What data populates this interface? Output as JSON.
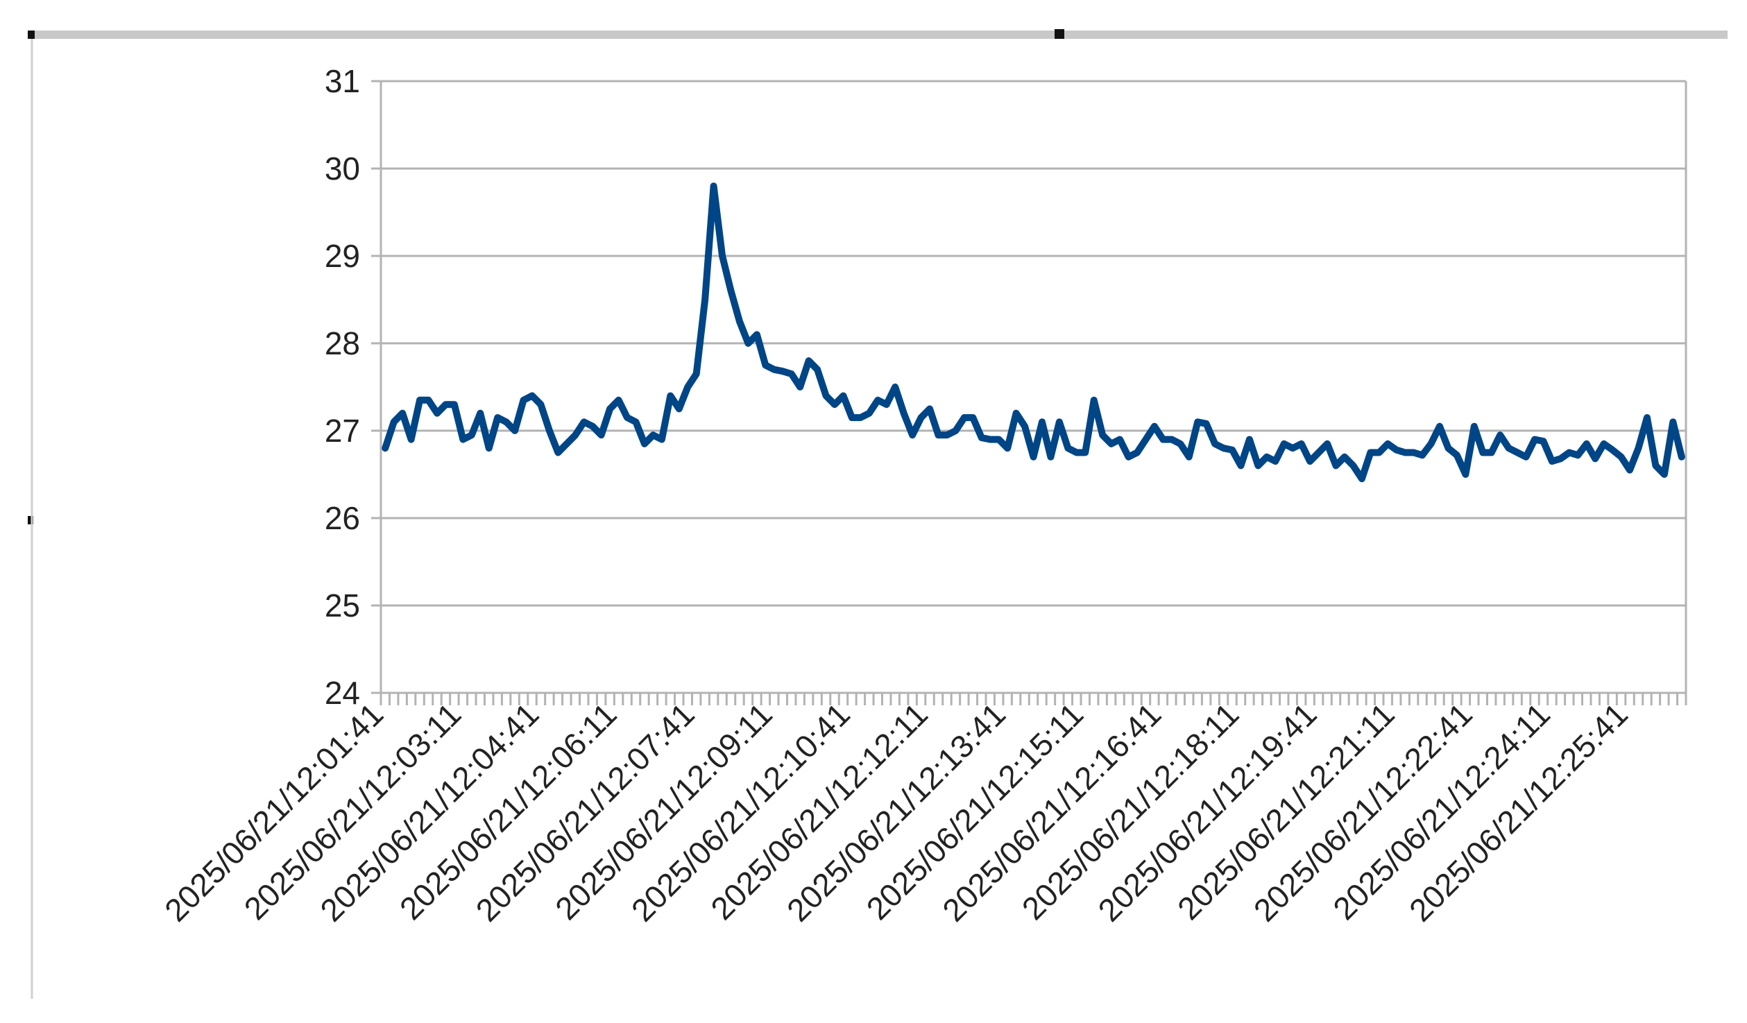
{
  "chart_data": {
    "type": "line",
    "categories": [
      "2025/06/21/12:01:41",
      null,
      null,
      null,
      null,
      null,
      null,
      null,
      null,
      "2025/06/21/12:03:11",
      null,
      null,
      null,
      null,
      null,
      null,
      null,
      null,
      "2025/06/21/12:04:41",
      null,
      null,
      null,
      null,
      null,
      null,
      null,
      null,
      "2025/06/21/12:06:11",
      null,
      null,
      null,
      null,
      null,
      null,
      null,
      null,
      "2025/06/21/12:07:41",
      null,
      null,
      null,
      null,
      null,
      null,
      null,
      null,
      "2025/06/21/12:09:11",
      null,
      null,
      null,
      null,
      null,
      null,
      null,
      null,
      "2025/06/21/12:10:41",
      null,
      null,
      null,
      null,
      null,
      null,
      null,
      null,
      "2025/06/21/12:12:11",
      null,
      null,
      null,
      null,
      null,
      null,
      null,
      null,
      "2025/06/21/12:13:41",
      null,
      null,
      null,
      null,
      null,
      null,
      null,
      null,
      "2025/06/21/12:15:11",
      null,
      null,
      null,
      null,
      null,
      null,
      null,
      null,
      "2025/06/21/12:16:41",
      null,
      null,
      null,
      null,
      null,
      null,
      null,
      null,
      "2025/06/21/12:18:11",
      null,
      null,
      null,
      null,
      null,
      null,
      null,
      null,
      "2025/06/21/12:19:41",
      null,
      null,
      null,
      null,
      null,
      null,
      null,
      null,
      "2025/06/21/12:21:11",
      null,
      null,
      null,
      null,
      null,
      null,
      null,
      null,
      "2025/06/21/12:22:41",
      null,
      null,
      null,
      null,
      null,
      null,
      null,
      null,
      "2025/06/21/12:24:11",
      null,
      null,
      null,
      null,
      null,
      null,
      null,
      null,
      "2025/06/21/12:25:41",
      null,
      null,
      null,
      null,
      null,
      null
    ],
    "values": [
      26.8,
      27.1,
      27.2,
      26.9,
      27.35,
      27.35,
      27.2,
      27.3,
      27.3,
      26.9,
      26.95,
      27.2,
      26.8,
      27.15,
      27.1,
      27.0,
      27.35,
      27.4,
      27.3,
      27.0,
      26.75,
      26.85,
      26.95,
      27.1,
      27.05,
      26.95,
      27.25,
      27.35,
      27.15,
      27.1,
      26.85,
      26.95,
      26.9,
      27.4,
      27.25,
      27.5,
      27.65,
      28.5,
      29.8,
      29.0,
      28.6,
      28.25,
      28.0,
      28.1,
      27.75,
      27.7,
      27.68,
      27.65,
      27.5,
      27.8,
      27.7,
      27.4,
      27.3,
      27.4,
      27.15,
      27.15,
      27.2,
      27.35,
      27.3,
      27.5,
      27.2,
      26.95,
      27.15,
      27.25,
      26.95,
      26.95,
      27.0,
      27.15,
      27.15,
      26.92,
      26.9,
      26.9,
      26.8,
      27.2,
      27.05,
      26.7,
      27.1,
      26.7,
      27.1,
      26.8,
      26.75,
      26.75,
      27.35,
      26.95,
      26.85,
      26.9,
      26.7,
      26.75,
      26.9,
      27.05,
      26.9,
      26.9,
      26.85,
      26.7,
      27.1,
      27.08,
      26.85,
      26.8,
      26.78,
      26.6,
      26.9,
      26.6,
      26.7,
      26.65,
      26.85,
      26.8,
      26.85,
      26.65,
      26.75,
      26.85,
      26.6,
      26.7,
      26.6,
      26.45,
      26.75,
      26.75,
      26.85,
      26.78,
      26.75,
      26.75,
      26.72,
      26.85,
      27.05,
      26.8,
      26.72,
      26.5,
      27.05,
      26.75,
      26.75,
      26.95,
      26.8,
      26.75,
      26.7,
      26.9,
      26.88,
      26.65,
      26.68,
      26.75,
      26.72,
      26.85,
      26.68,
      26.85,
      26.78,
      26.7,
      26.55,
      26.8,
      27.15,
      26.6,
      26.5,
      27.1,
      26.7
    ],
    "color": "#004586",
    "ylim": [
      24,
      31
    ],
    "yticks": [
      24,
      25,
      26,
      27,
      28,
      29,
      30,
      31
    ],
    "grid": true
  }
}
